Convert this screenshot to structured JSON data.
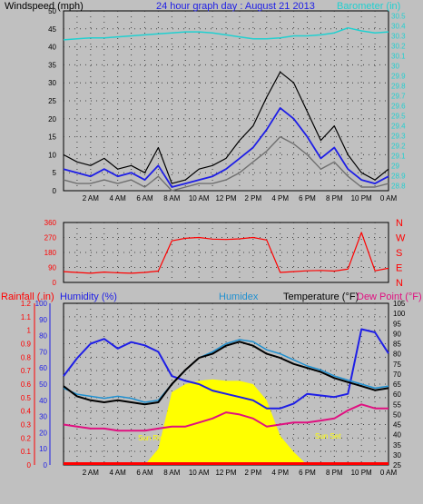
{
  "titles": {
    "windspeed": "Windspeed (mph)",
    "graph_day": "24 hour graph day : August 21 2013",
    "barometer": "Barometer (in)",
    "rainfall": "Rainfall (.in)",
    "humidity": "Humidity (%)",
    "humidex": "Humidex",
    "temperature": "Temperature (°F)",
    "dewpoint": "Dew Point (°F)"
  },
  "annotations": {
    "sun_rise": "Sun Rise",
    "sun_set": "Sun Set"
  },
  "colors": {
    "background": "#c0c0c0",
    "plot_bg": "#c0c0c0",
    "wind_gust": "#000000",
    "wind_avg": "#1e1ee6",
    "wind_gray": "#707070",
    "barometer": "#20d0d0",
    "direction": "#ff0000",
    "humidity": "#1e1ee6",
    "humidex": "#2090d0",
    "temperature": "#000000",
    "dewpoint": "#e01080",
    "solar": "#ffff00",
    "rain": "#ff0000"
  },
  "chart_data": [
    {
      "type": "line",
      "panel": "wind-barometer",
      "x_ticks": [
        "2 AM",
        "4 AM",
        "6 AM",
        "8 AM",
        "10 AM",
        "12 PM",
        "2 PM",
        "4 PM",
        "6 PM",
        "8 PM",
        "10 PM",
        "0 AM"
      ],
      "left_axis": {
        "ticks": [
          "0",
          "5",
          "10",
          "15",
          "20",
          "25",
          "30",
          "35",
          "40",
          "45",
          "50"
        ],
        "ylim": [
          0,
          50
        ]
      },
      "right_axis": {
        "ticks": [
          "28.8",
          "28.9",
          "29",
          "29.1",
          "29.2",
          "29.3",
          "29.4",
          "29.5",
          "29.6",
          "29.7",
          "29.8",
          "29.9",
          "30",
          "30.1",
          "30.2",
          "30.3",
          "30.4",
          "30.5"
        ],
        "ylim": [
          28.75,
          30.55
        ]
      },
      "x": [
        0,
        1,
        2,
        3,
        4,
        5,
        6,
        7,
        8,
        9,
        10,
        11,
        12,
        13,
        14,
        15,
        16,
        17,
        18,
        19,
        20,
        21,
        22,
        23,
        24
      ],
      "series": [
        {
          "name": "Windspeed gust",
          "values": [
            10,
            8,
            7,
            9,
            6,
            7,
            5,
            12,
            2,
            3,
            6,
            7,
            9,
            14,
            18,
            26,
            33,
            30,
            22,
            14,
            18,
            10,
            5,
            3,
            6
          ]
        },
        {
          "name": "Windspeed avg",
          "values": [
            6,
            5,
            4,
            6,
            4,
            5,
            3,
            7,
            1,
            2,
            3,
            4,
            6,
            9,
            12,
            17,
            23,
            20,
            15,
            9,
            12,
            6,
            3,
            2,
            4
          ]
        },
        {
          "name": "Windspeed low",
          "values": [
            3,
            2,
            2,
            3,
            2,
            3,
            1,
            4,
            0,
            1,
            2,
            2,
            3,
            5,
            8,
            11,
            15,
            13,
            10,
            6,
            8,
            4,
            1,
            1,
            2
          ]
        },
        {
          "name": "Barometer",
          "values": [
            30.26,
            30.27,
            30.28,
            30.28,
            30.29,
            30.3,
            30.31,
            30.32,
            30.33,
            30.34,
            30.34,
            30.33,
            30.31,
            30.29,
            30.27,
            30.27,
            30.28,
            30.3,
            30.3,
            30.31,
            30.33,
            30.38,
            30.35,
            30.33,
            30.34
          ]
        }
      ]
    },
    {
      "type": "line",
      "panel": "wind-direction",
      "left_axis": {
        "ticks": [
          "0",
          "90",
          "180",
          "270",
          "360"
        ],
        "ylim": [
          0,
          360
        ]
      },
      "right_axis": {
        "ticks": [
          "N",
          "W",
          "S",
          "E",
          "N"
        ]
      },
      "x": [
        0,
        1,
        2,
        3,
        4,
        5,
        6,
        7,
        8,
        9,
        10,
        11,
        12,
        13,
        14,
        15,
        16,
        17,
        18,
        19,
        20,
        21,
        22,
        23,
        24
      ],
      "series": [
        {
          "name": "Direction",
          "values": [
            65,
            60,
            55,
            62,
            58,
            55,
            60,
            68,
            250,
            265,
            270,
            260,
            258,
            262,
            270,
            255,
            60,
            65,
            70,
            72,
            68,
            80,
            300,
            70,
            85
          ]
        }
      ]
    },
    {
      "type": "line",
      "panel": "temperature-humidity",
      "rain_axis": {
        "ticks": [
          "0",
          "0.1",
          "0.2",
          "0.3",
          "0.4",
          "0.5",
          "0.6",
          "0.7",
          "0.8",
          "0.9",
          "1",
          "1.1",
          "1.2"
        ],
        "ylim": [
          0,
          1.2
        ]
      },
      "humidity_axis": {
        "ticks": [
          "0",
          "10",
          "20",
          "30",
          "40",
          "50",
          "60",
          "70",
          "80",
          "90",
          "100"
        ],
        "ylim": [
          0,
          100
        ]
      },
      "temp_axis": {
        "ticks": [
          "25",
          "30",
          "35",
          "40",
          "45",
          "50",
          "55",
          "60",
          "65",
          "70",
          "75",
          "80",
          "85",
          "90",
          "95",
          "100",
          "105"
        ],
        "ylim": [
          25,
          105
        ]
      },
      "x": [
        0,
        1,
        2,
        3,
        4,
        5,
        6,
        7,
        8,
        9,
        10,
        11,
        12,
        13,
        14,
        15,
        16,
        17,
        18,
        19,
        20,
        21,
        22,
        23,
        24
      ],
      "series": [
        {
          "name": "Humidity",
          "axis": "humidity",
          "values": [
            55,
            66,
            75,
            78,
            72,
            76,
            74,
            70,
            55,
            52,
            50,
            46,
            44,
            42,
            40,
            35,
            35,
            38,
            44,
            43,
            42,
            44,
            84,
            82,
            69
          ]
        },
        {
          "name": "Humidex",
          "axis": "temp",
          "values": [
            63,
            60,
            59,
            58,
            59,
            58,
            56,
            57,
            65,
            72,
            78,
            81,
            85,
            87,
            86,
            82,
            80,
            77,
            74,
            72,
            69,
            67,
            65,
            63,
            64
          ]
        },
        {
          "name": "Temperature",
          "axis": "temp",
          "values": [
            64,
            59,
            57,
            56,
            57,
            56,
            55,
            56,
            65,
            72,
            78,
            80,
            84,
            86,
            84,
            80,
            78,
            75,
            73,
            71,
            68,
            66,
            64,
            62,
            63
          ]
        },
        {
          "name": "Dew Point",
          "axis": "temp",
          "values": [
            45,
            44,
            43,
            43,
            42,
            42,
            42,
            43,
            44,
            44,
            46,
            48,
            51,
            50,
            48,
            44,
            45,
            46,
            46,
            47,
            48,
            52,
            55,
            53,
            53
          ]
        },
        {
          "name": "Solar",
          "axis": "humidity",
          "values": [
            0,
            0,
            0,
            0,
            0,
            0,
            0,
            10,
            45,
            50,
            52,
            53,
            52,
            52,
            50,
            40,
            18,
            8,
            0,
            0,
            0,
            0,
            0,
            0,
            0
          ]
        },
        {
          "name": "Rainfall",
          "axis": "rain",
          "values": [
            0.01,
            0.01,
            0.01,
            0.01,
            0.01,
            0.01,
            0.01,
            0.01,
            0.01,
            0.01,
            0.01,
            0.01,
            0.01,
            0.01,
            0.01,
            0.01,
            0.01,
            0.01,
            0.01,
            0.01,
            0.01,
            0.01,
            0.01,
            0.01,
            0.01
          ]
        }
      ]
    }
  ]
}
